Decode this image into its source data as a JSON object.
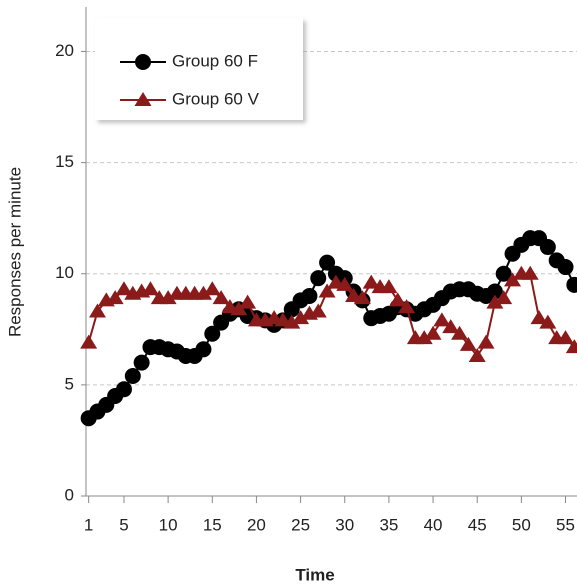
{
  "chart_data": {
    "type": "line",
    "x_label": "Time",
    "y_label": "Responses per minute",
    "x": [
      1,
      2,
      3,
      4,
      5,
      6,
      7,
      8,
      9,
      10,
      11,
      12,
      13,
      14,
      15,
      16,
      17,
      18,
      19,
      20,
      21,
      22,
      23,
      24,
      25,
      26,
      27,
      28,
      29,
      30,
      31,
      32,
      33,
      34,
      35,
      36,
      37,
      38,
      39,
      40,
      41,
      42,
      43,
      44,
      45,
      46,
      47,
      48,
      49,
      50,
      51,
      52,
      53,
      54,
      55,
      56
    ],
    "series": [
      {
        "name": "Group 60 F",
        "color": "#000000",
        "marker": "circle",
        "values": [
          3.5,
          3.8,
          4.1,
          4.5,
          4.8,
          5.4,
          6.0,
          6.7,
          6.7,
          6.6,
          6.5,
          6.3,
          6.3,
          6.6,
          7.3,
          7.8,
          8.2,
          8.4,
          8.1,
          8.0,
          7.9,
          7.7,
          7.9,
          8.4,
          8.8,
          9.0,
          9.8,
          10.5,
          10.0,
          9.8,
          9.2,
          8.8,
          8.0,
          8.1,
          8.2,
          8.5,
          8.4,
          8.2,
          8.4,
          8.6,
          8.9,
          9.2,
          9.3,
          9.3,
          9.1,
          9.0,
          9.2,
          10.0,
          10.9,
          11.3,
          11.6,
          11.6,
          11.2,
          10.6,
          10.3,
          9.5
        ]
      },
      {
        "name": "Group 60 V",
        "color": "#8b1a1a",
        "marker": "triangle",
        "values": [
          6.9,
          8.3,
          8.8,
          8.9,
          9.3,
          9.1,
          9.2,
          9.3,
          8.9,
          8.9,
          9.1,
          9.1,
          9.1,
          9.1,
          9.3,
          8.9,
          8.5,
          8.4,
          8.7,
          7.9,
          7.9,
          8.0,
          7.9,
          7.8,
          8.0,
          8.2,
          8.3,
          9.2,
          9.6,
          9.5,
          9.0,
          8.9,
          9.6,
          9.4,
          9.4,
          8.8,
          8.5,
          7.1,
          7.1,
          7.3,
          7.9,
          7.6,
          7.3,
          6.8,
          6.3,
          6.9,
          8.7,
          8.9,
          9.7,
          10.0,
          10.0,
          8.0,
          7.8,
          7.1,
          7.1,
          6.7
        ]
      }
    ],
    "xlim": [
      0.7,
      56.3
    ],
    "xticks": [
      1,
      5,
      10,
      15,
      20,
      25,
      30,
      35,
      40,
      45,
      50,
      55
    ],
    "ylim": [
      0,
      22
    ],
    "yticks": [
      0,
      5,
      10,
      15,
      20
    ],
    "grid": true,
    "legend": "upper left"
  }
}
